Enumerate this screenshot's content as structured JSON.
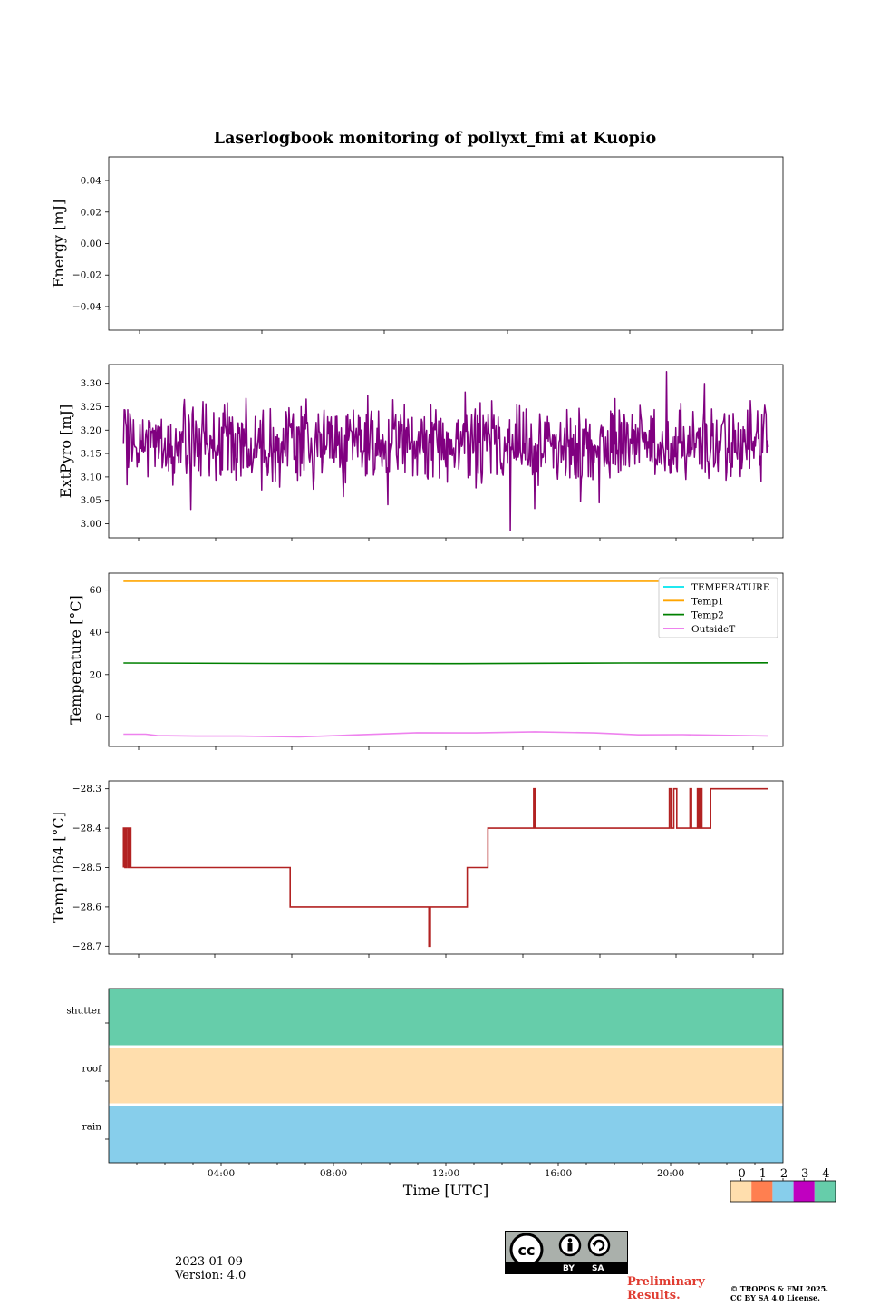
{
  "figure_title": "Laserlogbook monitoring of pollyxt_fmi at Kuopio",
  "footer": {
    "date": "2023-01-09",
    "version": "Version: 4.0",
    "preliminary_line1": "Preliminary",
    "preliminary_line2": "Results.",
    "copyright_line1": "© TROPOS & FMI 2025.",
    "copyright_line2": "CC BY SA 4.0 License.",
    "cc_by": "BY",
    "cc_sa": "SA"
  },
  "colors": {
    "extpyro": "#800080",
    "temperature": "#00e5ee",
    "temp1": "#ffa500",
    "temp2": "#008000",
    "outsideT": "#ee82ee",
    "temp1064": "#b22222",
    "preliminary": "#e03c31"
  },
  "chart_data": [
    {
      "id": "energy",
      "type": "line",
      "ylabel": "Energy [mJ]",
      "ylim": [
        -0.055,
        0.055
      ],
      "yticks": [
        0.04,
        0.02,
        0.0,
        -0.02,
        -0.04
      ],
      "ytick_labels": [
        "0.04",
        "0.02",
        "0.00",
        "−0.02",
        "−0.04"
      ],
      "series": []
    },
    {
      "id": "extpyro",
      "type": "line",
      "ylabel": "ExtPyro [mJ]",
      "ylim": [
        2.97,
        3.34
      ],
      "yticks": [
        3.3,
        3.25,
        3.2,
        3.15,
        3.1,
        3.05,
        3.0
      ],
      "ytick_labels": [
        "3.30",
        "3.25",
        "3.20",
        "3.15",
        "3.10",
        "3.05",
        "3.00"
      ],
      "series": [
        {
          "name": "ExtPyro",
          "mean": 3.17,
          "min": 2.985,
          "max": 3.325,
          "x_range_h": [
            1.05,
            22.9
          ]
        }
      ]
    },
    {
      "id": "temperature",
      "type": "line",
      "ylabel": "Temperature [°C]",
      "ylim": [
        -14,
        68
      ],
      "yticks": [
        60,
        40,
        20,
        0
      ],
      "ytick_labels": [
        "60",
        "40",
        "20",
        "0"
      ],
      "legend": [
        "TEMPERATURE",
        "Temp1",
        "Temp2",
        "OutsideT"
      ],
      "series": [
        {
          "name": "TEMPERATURE",
          "x": [],
          "y": []
        },
        {
          "name": "Temp1",
          "x": [
            1.05,
            22.9
          ],
          "y": [
            64.2,
            64.2
          ]
        },
        {
          "name": "Temp2",
          "x": [
            1.05,
            6,
            12,
            18,
            22.9
          ],
          "y": [
            25.5,
            25.3,
            25.2,
            25.5,
            25.6
          ]
        },
        {
          "name": "OutsideT",
          "x": [
            1.05,
            1.8,
            2.2,
            3.5,
            5,
            7,
            9,
            11,
            13,
            15,
            17,
            18.5,
            20,
            22.9
          ],
          "y": [
            -8.2,
            -8.2,
            -8.9,
            -9.1,
            -9.1,
            -9.5,
            -8.5,
            -7.5,
            -7.6,
            -7.1,
            -7.6,
            -8.5,
            -8.4,
            -9.0
          ]
        }
      ]
    },
    {
      "id": "temp1064",
      "type": "line",
      "ylabel": "Temp1064 [°C]",
      "ylim": [
        -28.72,
        -28.28
      ],
      "yticks": [
        -28.3,
        -28.4,
        -28.5,
        -28.6,
        -28.7
      ],
      "ytick_labels": [
        "−28.3",
        "−28.4",
        "−28.5",
        "−28.6",
        "−28.7"
      ],
      "series": [
        {
          "name": "Temp1064",
          "x": [
            1.05,
            1.05,
            1.1,
            1.1,
            1.15,
            1.15,
            1.2,
            1.2,
            1.25,
            1.25,
            1.3,
            1.3,
            1.35,
            1.35,
            6.7,
            6.7,
            11.4,
            11.4,
            11.45,
            11.45,
            12.7,
            12.7,
            13.4,
            13.4,
            14.95,
            14.95,
            15.0,
            15.0,
            19.55,
            19.55,
            19.6,
            19.6,
            19.7,
            19.7,
            19.8,
            19.8,
            19.85,
            19.85,
            20.25,
            20.25,
            20.3,
            20.3,
            20.5,
            20.5,
            20.55,
            20.55,
            20.6,
            20.6,
            20.65,
            20.65,
            20.95,
            20.95,
            22.9
          ],
          "y": [
            -28.5,
            -28.4,
            -28.4,
            -28.5,
            -28.5,
            -28.4,
            -28.4,
            -28.5,
            -28.5,
            -28.4,
            -28.4,
            -28.5,
            -28.5,
            -28.5,
            -28.5,
            -28.6,
            -28.6,
            -28.7,
            -28.7,
            -28.6,
            -28.6,
            -28.5,
            -28.5,
            -28.4,
            -28.4,
            -28.3,
            -28.3,
            -28.4,
            -28.4,
            -28.3,
            -28.3,
            -28.4,
            -28.4,
            -28.3,
            -28.3,
            -28.4,
            -28.4,
            -28.4,
            -28.4,
            -28.3,
            -28.3,
            -28.4,
            -28.4,
            -28.3,
            -28.3,
            -28.4,
            -28.4,
            -28.3,
            -28.3,
            -28.4,
            -28.4,
            -28.3,
            -28.3
          ]
        }
      ]
    },
    {
      "id": "status",
      "type": "heatmap",
      "rows": [
        "shutter",
        "roof",
        "rain"
      ],
      "row_values": [
        4,
        0,
        2
      ],
      "xlabel": "Time [UTC]",
      "xlim_h": [
        0,
        24
      ],
      "xticks_h": [
        4,
        8,
        12,
        16,
        20
      ],
      "xtick_labels": [
        "04:00",
        "08:00",
        "12:00",
        "16:00",
        "20:00"
      ],
      "colorbar": {
        "ticks": [
          "0",
          "1",
          "2",
          "3",
          "4"
        ],
        "colors": [
          "#ffdead",
          "#ff7f50",
          "#87ceeb",
          "#c000c0",
          "#66cdaa"
        ]
      }
    }
  ]
}
